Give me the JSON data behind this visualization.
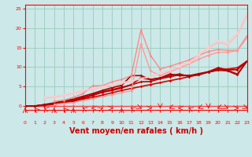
{
  "xlabel": "Vent moyen/en rafales ( km/h )",
  "bg_color": "#cce8e8",
  "grid_color": "#99ccbb",
  "xlim": [
    0,
    23
  ],
  "ylim": [
    -1,
    26
  ],
  "xticks": [
    0,
    1,
    2,
    3,
    4,
    5,
    6,
    7,
    8,
    9,
    10,
    11,
    12,
    13,
    14,
    15,
    16,
    17,
    18,
    19,
    20,
    21,
    22,
    23
  ],
  "yticks": [
    0,
    5,
    10,
    15,
    20,
    25
  ],
  "lines": [
    {
      "x": [
        0,
        1,
        2,
        3,
        4,
        5,
        6,
        7,
        8,
        9,
        10,
        11,
        12,
        13,
        14,
        15,
        16,
        17,
        18,
        19,
        20,
        21,
        22,
        23
      ],
      "y": [
        0,
        0,
        0,
        0,
        0,
        0,
        0,
        0,
        0,
        0,
        0,
        0,
        0,
        0,
        0,
        0,
        0,
        0,
        0,
        0,
        0,
        0,
        0,
        0
      ],
      "color": "#ff4444",
      "lw": 1.0,
      "marker": "D",
      "ms": 1.8,
      "alpha": 1.0
    },
    {
      "x": [
        0,
        1,
        2,
        3,
        4,
        5,
        6,
        7,
        8,
        9,
        10,
        11,
        12,
        13,
        14,
        15,
        16,
        17,
        18,
        19,
        20,
        21,
        22,
        23
      ],
      "y": [
        0,
        0,
        0.2,
        0.4,
        0.8,
        1.2,
        1.8,
        2.2,
        2.8,
        3.4,
        4.0,
        4.5,
        5.0,
        5.5,
        6.0,
        6.5,
        7.0,
        7.5,
        8.2,
        8.7,
        9.2,
        9.5,
        9.8,
        11.5
      ],
      "color": "#dd0000",
      "lw": 1.2,
      "marker": "D",
      "ms": 1.8,
      "alpha": 1.0
    },
    {
      "x": [
        0,
        1,
        2,
        3,
        4,
        5,
        6,
        7,
        8,
        9,
        10,
        11,
        12,
        13,
        14,
        15,
        16,
        17,
        18,
        19,
        20,
        21,
        22,
        23
      ],
      "y": [
        0,
        0,
        0.3,
        0.6,
        1.0,
        1.5,
        2.2,
        2.9,
        3.7,
        4.2,
        4.8,
        5.4,
        6.2,
        6.3,
        7.0,
        7.5,
        8.0,
        7.8,
        8.0,
        8.8,
        9.5,
        9.2,
        8.2,
        11.5
      ],
      "color": "#cc0000",
      "lw": 1.2,
      "marker": "D",
      "ms": 1.8,
      "alpha": 1.0
    },
    {
      "x": [
        0,
        1,
        2,
        3,
        4,
        5,
        6,
        7,
        8,
        9,
        10,
        11,
        12,
        13,
        14,
        15,
        16,
        17,
        18,
        19,
        20,
        21,
        22,
        23
      ],
      "y": [
        0,
        0,
        0.3,
        0.5,
        0.9,
        1.4,
        2.0,
        2.7,
        3.5,
        4.0,
        4.6,
        5.5,
        7.2,
        6.8,
        7.2,
        7.8,
        8.2,
        7.6,
        8.0,
        8.7,
        9.2,
        9.0,
        8.0,
        11.5
      ],
      "color": "#bb0000",
      "lw": 1.2,
      "marker": "D",
      "ms": 1.8,
      "alpha": 1.0
    },
    {
      "x": [
        0,
        1,
        2,
        3,
        4,
        5,
        6,
        7,
        8,
        9,
        10,
        11,
        12,
        13,
        14,
        15,
        16,
        17,
        18,
        19,
        20,
        21,
        22,
        23
      ],
      "y": [
        0,
        0,
        0.4,
        0.8,
        1.3,
        1.8,
        2.5,
        3.2,
        4.0,
        4.7,
        5.3,
        7.8,
        7.8,
        6.8,
        7.2,
        8.2,
        7.8,
        7.8,
        8.3,
        8.8,
        9.8,
        9.3,
        9.3,
        11.5
      ],
      "color": "#aa0000",
      "lw": 1.2,
      "marker": "D",
      "ms": 1.8,
      "alpha": 1.0
    },
    {
      "x": [
        3,
        4,
        5,
        6,
        7,
        8,
        9,
        10,
        11,
        12,
        13,
        14,
        15,
        16,
        17,
        18,
        19,
        20,
        21,
        22,
        23
      ],
      "y": [
        1.2,
        1.5,
        2.2,
        3.2,
        5.2,
        5.2,
        6.2,
        6.8,
        7.8,
        19.5,
        13.0,
        9.5,
        10.2,
        11.0,
        11.8,
        13.0,
        14.0,
        14.5,
        14.3,
        14.3,
        18.0
      ],
      "color": "#ff8888",
      "lw": 1.0,
      "marker": "D",
      "ms": 1.8,
      "alpha": 1.0
    },
    {
      "x": [
        3,
        4,
        5,
        6,
        7,
        8,
        9,
        10,
        11,
        12,
        13,
        14,
        15,
        16,
        17,
        18,
        19,
        20,
        21,
        22,
        23
      ],
      "y": [
        0.4,
        0.7,
        0.9,
        1.4,
        1.9,
        2.4,
        2.9,
        3.4,
        3.9,
        16.0,
        9.0,
        7.8,
        8.8,
        9.8,
        10.8,
        12.0,
        13.0,
        13.8,
        13.8,
        14.2,
        17.5
      ],
      "color": "#ff9999",
      "lw": 1.0,
      "marker": "D",
      "ms": 1.8,
      "alpha": 1.0
    },
    {
      "x": [
        2,
        3,
        4,
        5,
        6,
        7,
        8,
        9,
        10,
        11,
        12,
        13,
        14,
        15,
        16,
        17,
        18,
        19,
        20,
        21,
        22,
        23
      ],
      "y": [
        2.0,
        2.3,
        2.7,
        3.3,
        3.8,
        4.3,
        4.8,
        5.3,
        5.8,
        6.3,
        7.0,
        7.5,
        8.5,
        9.0,
        10.0,
        11.0,
        13.0,
        15.0,
        16.3,
        15.8,
        18.2,
        23.2
      ],
      "color": "#ffbbbb",
      "lw": 1.0,
      "marker": "D",
      "ms": 1.8,
      "alpha": 1.0
    },
    {
      "x": [
        2,
        3,
        4,
        5,
        6,
        7,
        8,
        9,
        10,
        11,
        12,
        13,
        14,
        15,
        16,
        17,
        18,
        19,
        20,
        21,
        22,
        23
      ],
      "y": [
        2.2,
        2.5,
        2.8,
        3.4,
        4.0,
        4.5,
        5.0,
        5.5,
        6.0,
        6.5,
        7.0,
        7.5,
        8.5,
        9.2,
        10.2,
        11.2,
        13.2,
        15.2,
        16.7,
        16.2,
        18.7,
        23.8
      ],
      "color": "#ffcccc",
      "lw": 1.0,
      "marker": "D",
      "ms": 1.8,
      "alpha": 1.0
    }
  ],
  "wind_arrow_angles": [
    180,
    200,
    225,
    180,
    200,
    180,
    225,
    270,
    135,
    90,
    180,
    225,
    45,
    90,
    0,
    315,
    270,
    225,
    315,
    0,
    315,
    45,
    90,
    45
  ],
  "xlabel_color": "#cc0000",
  "xlabel_fontsize": 7
}
